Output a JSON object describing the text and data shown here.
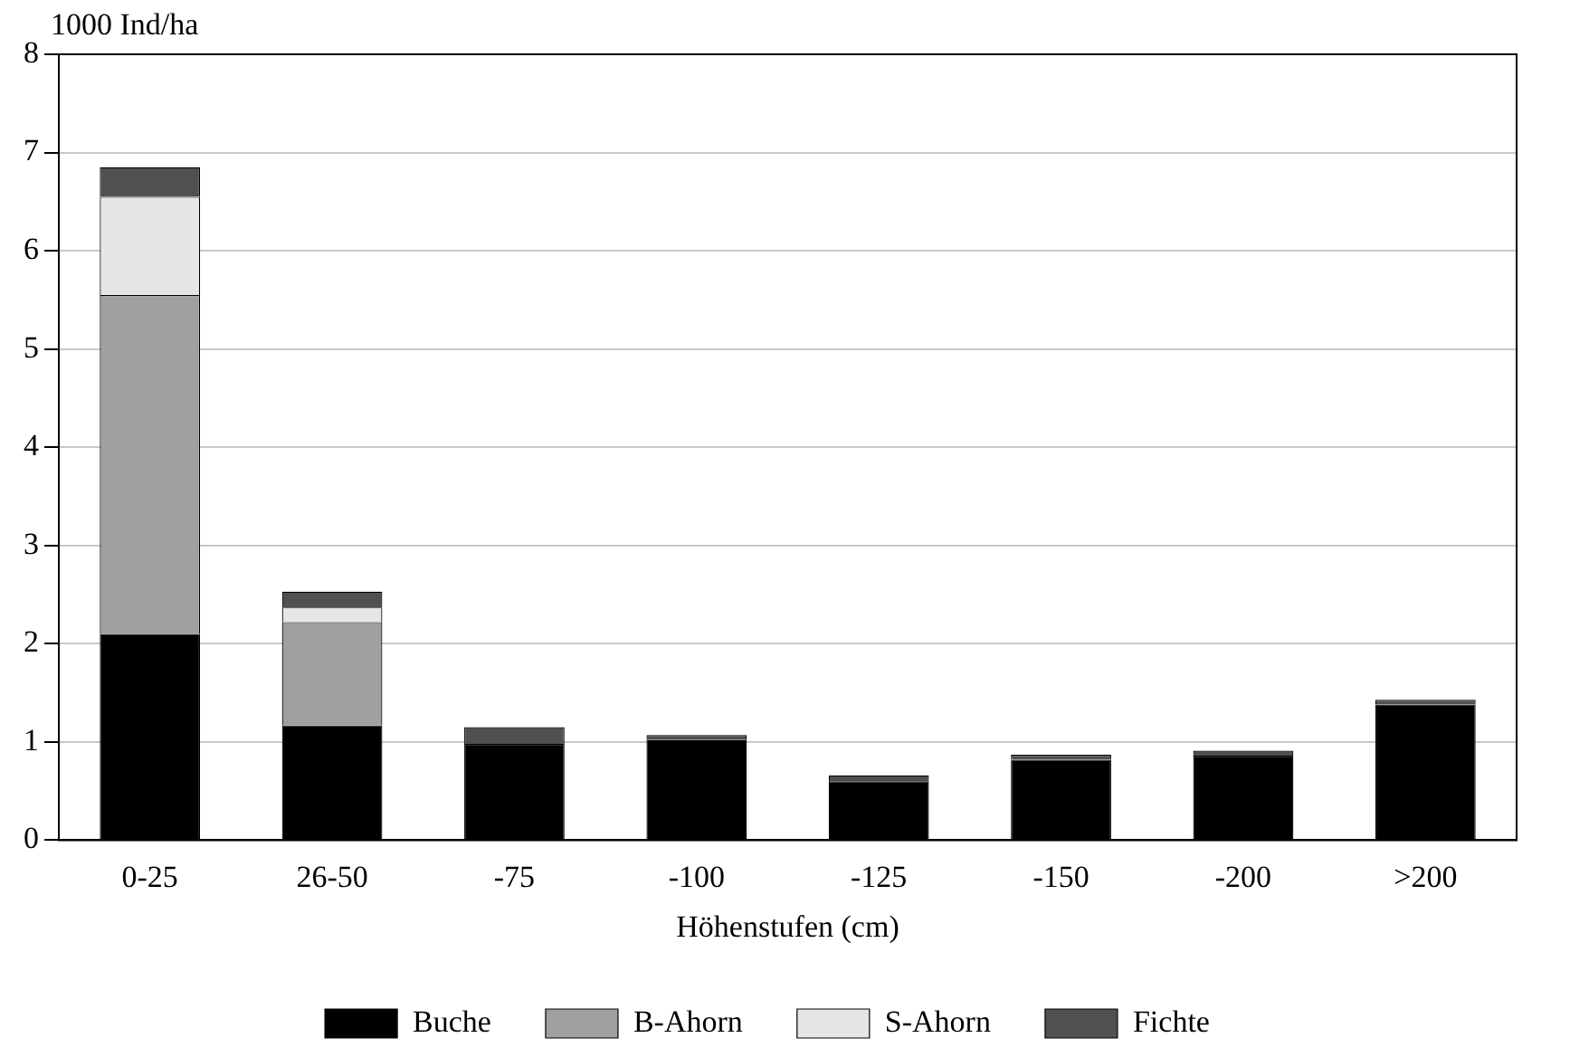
{
  "chart_data": {
    "type": "bar",
    "stacked": true,
    "ylabel": "1000 Ind/ha",
    "xlabel": "Höhenstufen (cm)",
    "categories": [
      "0-25",
      "26-50",
      "-75",
      "-100",
      "-125",
      "-150",
      "-200",
      ">200"
    ],
    "series": [
      {
        "name": "Buche",
        "color": "#000000",
        "values": [
          2.1,
          1.17,
          0.98,
          1.02,
          0.6,
          0.82,
          0.86,
          1.38
        ]
      },
      {
        "name": "B-Ahorn",
        "color": "#a0a0a0",
        "values": [
          3.45,
          1.05,
          0,
          0,
          0,
          0,
          0,
          0
        ]
      },
      {
        "name": "S-Ahorn",
        "color": "#e6e6e6",
        "values": [
          1.0,
          0.15,
          0,
          0,
          0,
          0,
          0,
          0
        ]
      },
      {
        "name": "Fichte",
        "color": "#505050",
        "values": [
          0.3,
          0.16,
          0.17,
          0.05,
          0.06,
          0.05,
          0.05,
          0.05
        ]
      }
    ],
    "ylim": [
      0,
      8
    ],
    "yticks": [
      0,
      1,
      2,
      3,
      4,
      5,
      6,
      7,
      8
    ],
    "grid": "y",
    "legend": "bottom"
  }
}
